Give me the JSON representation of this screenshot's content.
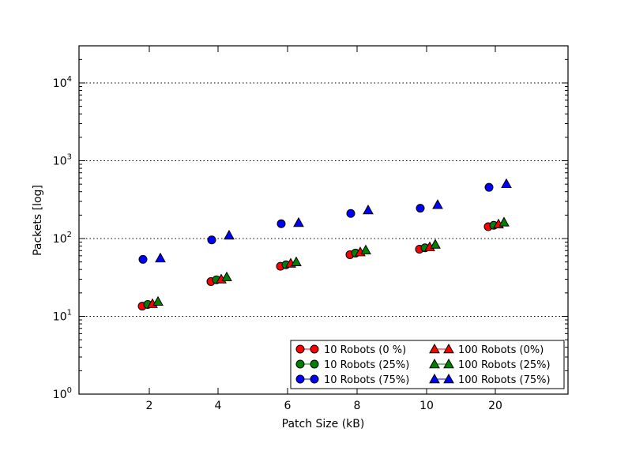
{
  "chart_data": {
    "type": "scatter",
    "title": "",
    "xlabel": "Patch Size (kB)",
    "ylabel": "Packets [log]",
    "yscale": "log",
    "ylim": [
      1,
      30000
    ],
    "grid": "horizontal dotted",
    "legend_position": "bottom-right",
    "categories": [
      "2",
      "4",
      "6",
      "8",
      "10",
      "20"
    ],
    "yticks": [
      {
        "base": "10",
        "exp": "0"
      },
      {
        "base": "10",
        "exp": "1"
      },
      {
        "base": "10",
        "exp": "2"
      },
      {
        "base": "10",
        "exp": "3"
      },
      {
        "base": "10",
        "exp": "4"
      }
    ],
    "series": [
      {
        "name": "10 Robots (0 %)",
        "marker": "circle",
        "color": "#ff0000",
        "values": [
          13.5,
          28,
          44,
          62,
          73,
          142
        ]
      },
      {
        "name": "10 Robots (25%)",
        "marker": "circle",
        "color": "#008000",
        "values": [
          14.2,
          29.5,
          46,
          65,
          76,
          148
        ]
      },
      {
        "name": "10 Robots (75%)",
        "marker": "circle",
        "color": "#0000ff",
        "values": [
          54,
          96,
          155,
          210,
          245,
          455
        ]
      },
      {
        "name": "100 Robots (0%)",
        "marker": "triangle",
        "color": "#ff0000",
        "values": [
          14.5,
          30,
          48,
          67,
          78,
          153
        ]
      },
      {
        "name": "100 Robots (25%)",
        "marker": "triangle",
        "color": "#008000",
        "values": [
          15.5,
          32,
          50,
          71,
          84,
          162
        ]
      },
      {
        "name": "100 Robots (75%)",
        "marker": "triangle",
        "color": "#0000ff",
        "values": [
          56,
          110,
          160,
          232,
          272,
          505
        ]
      }
    ]
  }
}
